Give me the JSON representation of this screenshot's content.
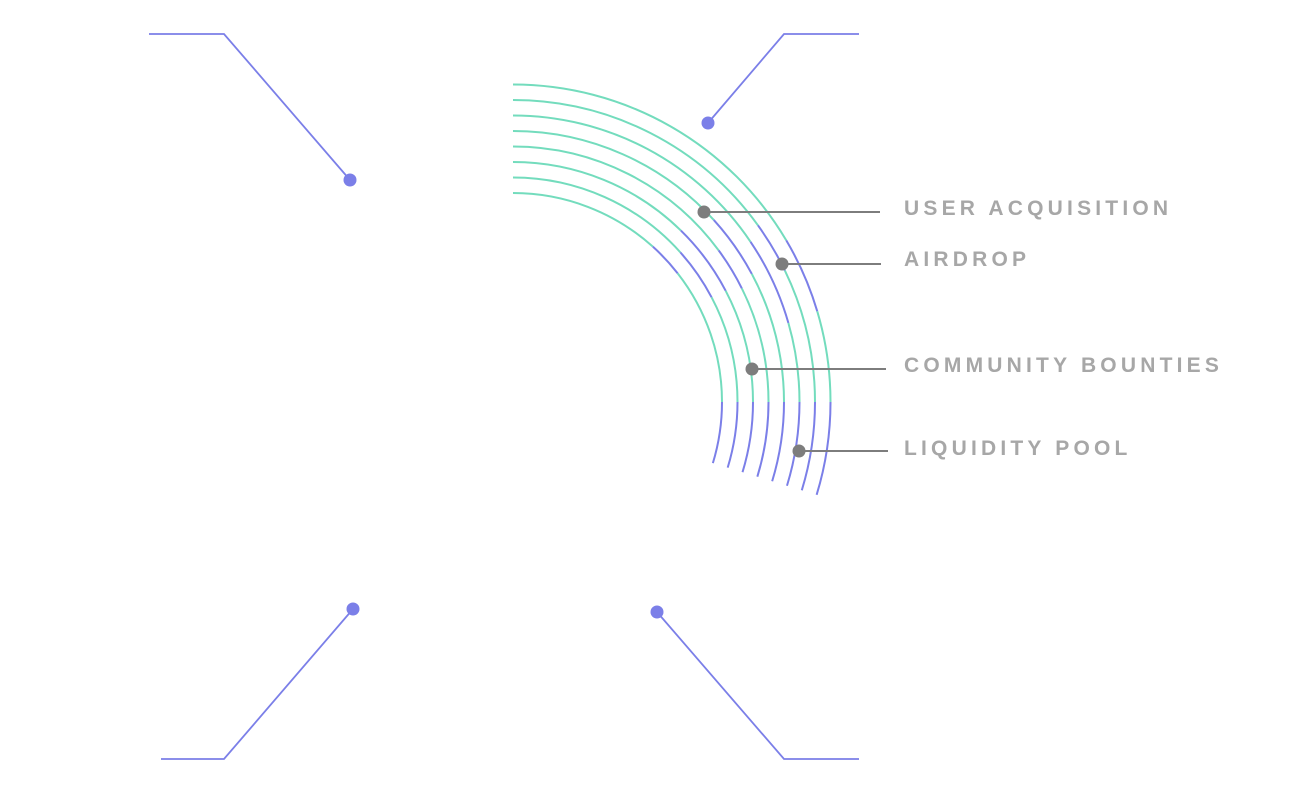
{
  "colors": {
    "indigo": "#7b7fe8",
    "mint": "#73dcbd",
    "label_gray": "#a7a7a7",
    "leader_gray": "#7d7d7d",
    "background": "#ffffff"
  },
  "categories": [
    {
      "id": "user-acquisition",
      "label": "USER ACQUISITION"
    },
    {
      "id": "airdrop",
      "label": "AIRDROP"
    },
    {
      "id": "community-bounties",
      "label": "COMMUNITY BOUNTIES"
    },
    {
      "id": "liquidity-pool",
      "label": "LIQUIDITY POOL"
    }
  ],
  "callouts": [
    {
      "id": "top-left"
    },
    {
      "id": "top-right"
    },
    {
      "id": "bottom-left"
    },
    {
      "id": "bottom-right"
    }
  ],
  "arcs": {
    "count": 8
  }
}
